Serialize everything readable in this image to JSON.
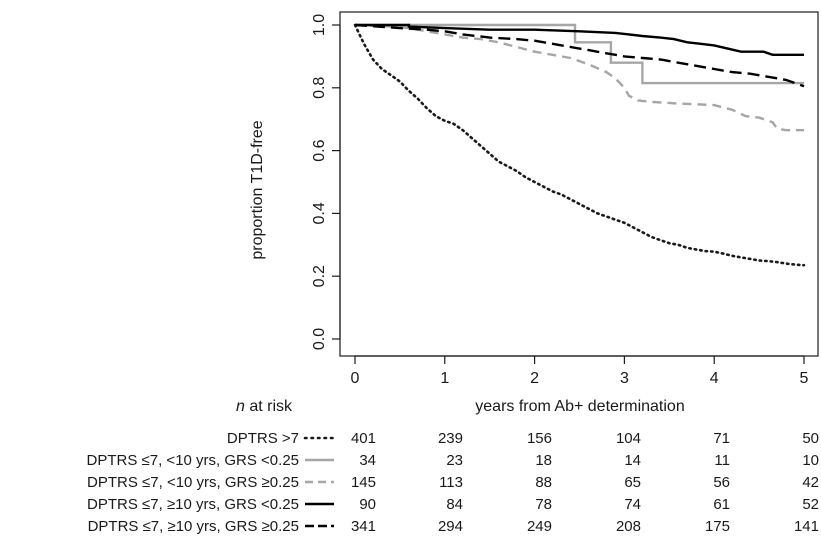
{
  "chart_data": {
    "type": "line",
    "title": "",
    "xlabel": "years from Ab+ determination",
    "ylabel": "proportion T1D-free",
    "xlim": [
      0,
      5
    ],
    "ylim": [
      0,
      1
    ],
    "x_ticks": [
      "0",
      "1",
      "2",
      "3",
      "4",
      "5"
    ],
    "y_ticks": [
      "0.0",
      "0.2",
      "0.4",
      "0.6",
      "0.8",
      "1.0"
    ],
    "grid": false,
    "risk_table": {
      "header_italic": "n",
      "header_rest": " at risk",
      "time_points": [
        0,
        1,
        2,
        3,
        4,
        5
      ]
    },
    "series": [
      {
        "name": "DPTRS >7",
        "color": "#1a1a1a",
        "style": "dotted",
        "at_risk": [
          "401",
          "239",
          "156",
          "104",
          "71",
          "50"
        ],
        "points": [
          [
            0,
            1.0
          ],
          [
            0.05,
            0.97
          ],
          [
            0.1,
            0.94
          ],
          [
            0.15,
            0.915
          ],
          [
            0.2,
            0.89
          ],
          [
            0.3,
            0.86
          ],
          [
            0.4,
            0.84
          ],
          [
            0.5,
            0.82
          ],
          [
            0.6,
            0.79
          ],
          [
            0.7,
            0.765
          ],
          [
            0.8,
            0.735
          ],
          [
            0.9,
            0.71
          ],
          [
            1.0,
            0.695
          ],
          [
            1.1,
            0.685
          ],
          [
            1.2,
            0.665
          ],
          [
            1.3,
            0.64
          ],
          [
            1.4,
            0.615
          ],
          [
            1.5,
            0.59
          ],
          [
            1.6,
            0.565
          ],
          [
            1.7,
            0.55
          ],
          [
            1.8,
            0.535
          ],
          [
            1.9,
            0.515
          ],
          [
            2.0,
            0.5
          ],
          [
            2.1,
            0.485
          ],
          [
            2.2,
            0.47
          ],
          [
            2.3,
            0.46
          ],
          [
            2.4,
            0.445
          ],
          [
            2.5,
            0.43
          ],
          [
            2.6,
            0.415
          ],
          [
            2.7,
            0.4
          ],
          [
            2.8,
            0.39
          ],
          [
            2.9,
            0.38
          ],
          [
            3.0,
            0.37
          ],
          [
            3.1,
            0.355
          ],
          [
            3.2,
            0.34
          ],
          [
            3.3,
            0.325
          ],
          [
            3.4,
            0.315
          ],
          [
            3.5,
            0.305
          ],
          [
            3.6,
            0.3
          ],
          [
            3.7,
            0.29
          ],
          [
            3.8,
            0.285
          ],
          [
            3.9,
            0.28
          ],
          [
            4.0,
            0.278
          ],
          [
            4.1,
            0.272
          ],
          [
            4.2,
            0.265
          ],
          [
            4.3,
            0.26
          ],
          [
            4.4,
            0.255
          ],
          [
            4.5,
            0.25
          ],
          [
            4.6,
            0.248
          ],
          [
            4.7,
            0.245
          ],
          [
            4.8,
            0.24
          ],
          [
            4.9,
            0.237
          ],
          [
            5.0,
            0.235
          ]
        ]
      },
      {
        "name": "DPTRS ≤7, <10 yrs, GRS <0.25",
        "color": "#a6a6a6",
        "style": "solid",
        "at_risk": [
          "34",
          "23",
          "18",
          "14",
          "11",
          "10"
        ],
        "points": [
          [
            0,
            1.0
          ],
          [
            2.45,
            1.0
          ],
          [
            2.45,
            0.945
          ],
          [
            2.85,
            0.945
          ],
          [
            2.85,
            0.88
          ],
          [
            3.2,
            0.88
          ],
          [
            3.2,
            0.815
          ],
          [
            5.0,
            0.815
          ]
        ]
      },
      {
        "name": "DPTRS ≤7, <10 yrs, GRS ≥0.25",
        "color": "#a6a6a6",
        "style": "dashed",
        "at_risk": [
          "145",
          "113",
          "88",
          "65",
          "56",
          "42"
        ],
        "points": [
          [
            0,
            1.0
          ],
          [
            0.4,
            0.995
          ],
          [
            0.6,
            0.99
          ],
          [
            0.8,
            0.98
          ],
          [
            1.0,
            0.97
          ],
          [
            1.2,
            0.96
          ],
          [
            1.4,
            0.955
          ],
          [
            1.6,
            0.945
          ],
          [
            1.8,
            0.93
          ],
          [
            2.0,
            0.915
          ],
          [
            2.2,
            0.905
          ],
          [
            2.4,
            0.895
          ],
          [
            2.6,
            0.875
          ],
          [
            2.8,
            0.85
          ],
          [
            2.9,
            0.83
          ],
          [
            3.0,
            0.8
          ],
          [
            3.05,
            0.775
          ],
          [
            3.15,
            0.76
          ],
          [
            3.3,
            0.755
          ],
          [
            3.6,
            0.75
          ],
          [
            4.0,
            0.745
          ],
          [
            4.2,
            0.73
          ],
          [
            4.35,
            0.71
          ],
          [
            4.5,
            0.705
          ],
          [
            4.65,
            0.69
          ],
          [
            4.7,
            0.67
          ],
          [
            4.8,
            0.665
          ],
          [
            5.0,
            0.665
          ]
        ]
      },
      {
        "name": "DPTRS ≤7, ≥10 yrs, GRS <0.25",
        "color": "#000000",
        "style": "solid",
        "at_risk": [
          "90",
          "84",
          "78",
          "74",
          "61",
          "52"
        ],
        "points": [
          [
            0,
            1.0
          ],
          [
            0.6,
            1.0
          ],
          [
            0.6,
            0.995
          ],
          [
            1.0,
            0.99
          ],
          [
            1.5,
            0.985
          ],
          [
            2.0,
            0.985
          ],
          [
            2.5,
            0.98
          ],
          [
            2.9,
            0.975
          ],
          [
            3.05,
            0.97
          ],
          [
            3.2,
            0.965
          ],
          [
            3.4,
            0.96
          ],
          [
            3.55,
            0.955
          ],
          [
            3.7,
            0.945
          ],
          [
            3.85,
            0.94
          ],
          [
            4.0,
            0.935
          ],
          [
            4.15,
            0.925
          ],
          [
            4.3,
            0.915
          ],
          [
            4.55,
            0.915
          ],
          [
            4.65,
            0.905
          ],
          [
            5.0,
            0.905
          ]
        ]
      },
      {
        "name": "DPTRS ≤7, ≥10 yrs, GRS ≥0.25",
        "color": "#000000",
        "style": "longdash",
        "at_risk": [
          "341",
          "294",
          "249",
          "208",
          "175",
          "141"
        ],
        "points": [
          [
            0,
            1.0
          ],
          [
            0.5,
            0.99
          ],
          [
            0.8,
            0.985
          ],
          [
            1.0,
            0.98
          ],
          [
            1.2,
            0.97
          ],
          [
            1.5,
            0.96
          ],
          [
            1.8,
            0.955
          ],
          [
            2.0,
            0.95
          ],
          [
            2.2,
            0.94
          ],
          [
            2.4,
            0.93
          ],
          [
            2.6,
            0.92
          ],
          [
            2.8,
            0.91
          ],
          [
            3.0,
            0.9
          ],
          [
            3.2,
            0.895
          ],
          [
            3.4,
            0.89
          ],
          [
            3.6,
            0.88
          ],
          [
            3.8,
            0.87
          ],
          [
            4.0,
            0.86
          ],
          [
            4.2,
            0.85
          ],
          [
            4.4,
            0.845
          ],
          [
            4.6,
            0.835
          ],
          [
            4.8,
            0.825
          ],
          [
            4.9,
            0.815
          ],
          [
            5.0,
            0.805
          ]
        ]
      }
    ]
  }
}
